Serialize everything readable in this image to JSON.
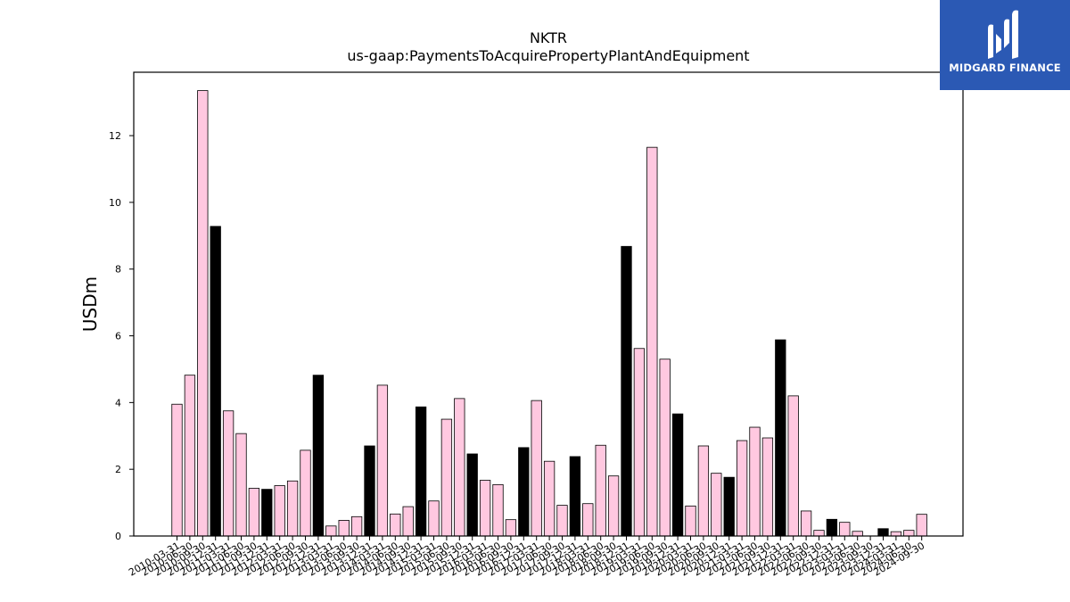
{
  "chart_data": {
    "type": "bar",
    "title": "NKTR",
    "subtitle": "us-gaap:PaymentsToAcquirePropertyPlantAndEquipment",
    "ylabel": "USDm",
    "xlabel": "",
    "ylim": [
      0,
      13.9
    ],
    "yticks": [
      0,
      2,
      4,
      6,
      8,
      10,
      12
    ],
    "colors": {
      "quarter": "#ffc8e0",
      "year_end": "#000000",
      "edge": "#000000"
    },
    "categories": [
      "2010-03-31",
      "2010-06-30",
      "2010-09-30",
      "2010-12-31",
      "2011-03-31",
      "2011-06-30",
      "2011-09-30",
      "2011-12-31",
      "2012-03-31",
      "2012-06-30",
      "2012-09-30",
      "2012-12-31",
      "2013-03-31",
      "2013-06-30",
      "2013-09-30",
      "2013-12-31",
      "2014-03-31",
      "2014-06-30",
      "2014-09-30",
      "2014-12-31",
      "2015-03-31",
      "2015-06-30",
      "2015-09-30",
      "2015-12-31",
      "2016-03-31",
      "2016-06-30",
      "2016-09-30",
      "2016-12-31",
      "2017-03-31",
      "2017-06-30",
      "2017-09-30",
      "2017-12-31",
      "2018-03-31",
      "2018-06-30",
      "2018-09-30",
      "2018-12-31",
      "2019-03-31",
      "2019-06-30",
      "2019-09-30",
      "2019-12-31",
      "2020-03-31",
      "2020-06-30",
      "2020-09-30",
      "2020-12-31",
      "2021-03-31",
      "2021-06-30",
      "2021-09-30",
      "2021-12-31",
      "2022-03-31",
      "2022-06-30",
      "2022-09-30",
      "2022-12-31",
      "2023-03-31",
      "2023-06-30",
      "2023-09-30",
      "2023-12-31",
      "2024-03-31",
      "2024-06-30",
      "2024-09-30"
    ],
    "values": [
      3.95,
      4.82,
      13.35,
      9.28,
      3.75,
      3.07,
      1.43,
      1.4,
      1.51,
      1.65,
      2.57,
      4.82,
      0.3,
      0.47,
      0.58,
      2.7,
      4.52,
      0.66,
      0.88,
      3.87,
      1.05,
      3.5,
      4.12,
      2.46,
      1.67,
      1.54,
      0.49,
      2.65,
      4.06,
      2.24,
      0.92,
      2.38,
      0.97,
      2.72,
      1.8,
      8.68,
      5.62,
      11.65,
      5.3,
      3.66,
      0.9,
      2.7,
      1.88,
      1.76,
      2.86,
      3.26,
      2.94,
      5.88,
      4.2,
      0.75,
      0.17,
      0.5,
      0.41,
      0.14,
      0.0,
      0.22,
      0.13,
      0.17,
      0.65
    ],
    "year_end_flags": [
      0,
      0,
      0,
      1,
      0,
      0,
      0,
      1,
      0,
      0,
      0,
      1,
      0,
      0,
      0,
      1,
      0,
      0,
      0,
      1,
      0,
      0,
      0,
      1,
      0,
      0,
      0,
      1,
      0,
      0,
      0,
      1,
      0,
      0,
      0,
      1,
      0,
      0,
      0,
      1,
      0,
      0,
      0,
      1,
      0,
      0,
      0,
      1,
      0,
      0,
      0,
      1,
      0,
      0,
      0,
      1,
      0,
      0,
      0
    ],
    "grid": false,
    "legend": "none"
  },
  "logo": {
    "text": "MIDGARD FINANCE",
    "icon": "midgard-logo-icon"
  }
}
